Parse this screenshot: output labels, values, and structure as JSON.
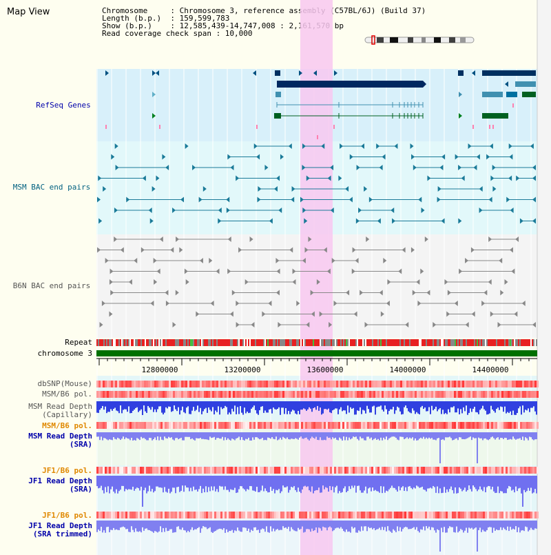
{
  "view_title": "Map View",
  "info_lines": [
    "Chromosome     : Chromosome 3, reference assembly (C57BL/6J) (Build 37)",
    "Length (b.p.)  : 159,599,783",
    "Show (b.p.)    : 12,585,439-14,747,008 : 2,161,570 bp",
    "Read coverage check span : 10,000"
  ],
  "tracks": {
    "refseq": "RefSeq Genes",
    "msm_bac": "MSM BAC end pairs",
    "b6n_bac": "B6N BAC end pairs",
    "repeat": "Repeat",
    "chromosome": "chromosome 3",
    "dbsnp": "dbSNP(Mouse)",
    "msm_b6_pol": "MSM/B6 pol.",
    "msm_depth_cap_1": "MSM Read Depth",
    "msm_depth_cap_2": "(Capillary)",
    "msm_b6_pol_2": "MSM/B6 pol.",
    "msm_depth_sra_1": "MSM Read Depth",
    "msm_depth_sra_2": "(SRA)",
    "jf1_b6_pol": "JF1/B6 pol.",
    "jf1_depth_sra_1": "JF1 Read Depth",
    "jf1_depth_sra_2": "(SRA)",
    "jf1_b6_pol_2": "JF1/B6 pol.",
    "jf1_depth_trim_1": "JF1 Read Depth",
    "jf1_depth_trim_2": "(SRA trimmed)"
  },
  "axis": {
    "ticks": [
      "12800000",
      "13200000",
      "13600000",
      "14000000",
      "14400000"
    ]
  },
  "colors": {
    "refseq_label": "#0000aa",
    "msm_label": "#006080",
    "gray_label": "#555555",
    "pol_label": "#e08800",
    "depth_label": "#0000aa",
    "highlight": "#f8c8f0"
  }
}
